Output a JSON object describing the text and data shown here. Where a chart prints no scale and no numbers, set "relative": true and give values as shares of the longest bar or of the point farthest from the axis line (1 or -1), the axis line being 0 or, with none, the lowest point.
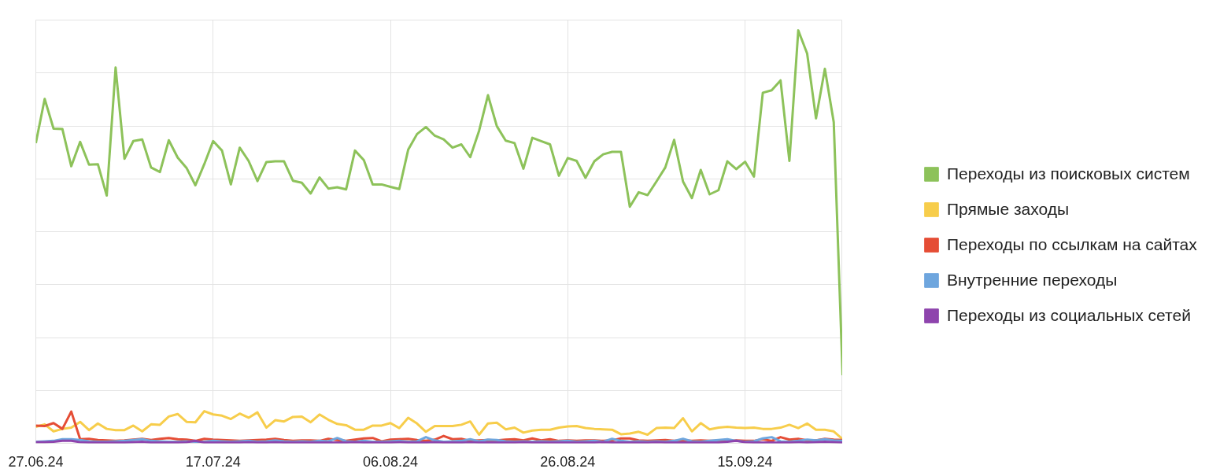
{
  "chart_data": {
    "type": "line",
    "relative": true,
    "grid": true,
    "legend": "right",
    "line_style": "solid",
    "x": [
      "2024-06-27",
      "2024-06-28",
      "2024-06-29",
      "2024-06-30",
      "2024-07-01",
      "2024-07-02",
      "2024-07-03",
      "2024-07-04",
      "2024-07-05",
      "2024-07-06",
      "2024-07-07",
      "2024-07-08",
      "2024-07-09",
      "2024-07-10",
      "2024-07-11",
      "2024-07-12",
      "2024-07-13",
      "2024-07-14",
      "2024-07-15",
      "2024-07-16",
      "2024-07-17",
      "2024-07-18",
      "2024-07-19",
      "2024-07-20",
      "2024-07-21",
      "2024-07-22",
      "2024-07-23",
      "2024-07-24",
      "2024-07-25",
      "2024-07-26",
      "2024-07-27",
      "2024-07-28",
      "2024-07-29",
      "2024-07-30",
      "2024-07-31",
      "2024-08-01",
      "2024-08-02",
      "2024-08-03",
      "2024-08-04",
      "2024-08-05",
      "2024-08-06",
      "2024-08-07",
      "2024-08-08",
      "2024-08-09",
      "2024-08-10",
      "2024-08-11",
      "2024-08-12",
      "2024-08-13",
      "2024-08-14",
      "2024-08-15",
      "2024-08-16",
      "2024-08-17",
      "2024-08-18",
      "2024-08-19",
      "2024-08-20",
      "2024-08-21",
      "2024-08-22",
      "2024-08-23",
      "2024-08-24",
      "2024-08-25",
      "2024-08-26",
      "2024-08-27",
      "2024-08-28",
      "2024-08-29",
      "2024-08-30",
      "2024-08-31",
      "2024-09-01",
      "2024-09-02",
      "2024-09-03",
      "2024-09-04",
      "2024-09-05",
      "2024-09-06",
      "2024-09-07",
      "2024-09-08",
      "2024-09-09",
      "2024-09-10",
      "2024-09-11",
      "2024-09-12",
      "2024-09-13",
      "2024-09-14",
      "2024-09-15",
      "2024-09-16",
      "2024-09-17",
      "2024-09-18",
      "2024-09-19",
      "2024-09-20",
      "2024-09-21",
      "2024-09-22",
      "2024-09-23",
      "2024-09-24",
      "2024-09-25",
      "2024-09-26"
    ],
    "xlim": [
      "2024-06-27",
      "2024-09-26"
    ],
    "xticks": [
      {
        "value": "2024-06-27",
        "label": "27.06.24"
      },
      {
        "value": "2024-07-17",
        "label": "17.07.24"
      },
      {
        "value": "2024-08-06",
        "label": "06.08.24"
      },
      {
        "value": "2024-08-26",
        "label": "26.08.24"
      },
      {
        "value": "2024-09-15",
        "label": "15.09.24"
      }
    ],
    "series": [
      {
        "name": "Переходы из поисковых систем",
        "color": "#8dc25a",
        "values": [
          0.727,
          0.834,
          0.762,
          0.761,
          0.671,
          0.73,
          0.675,
          0.676,
          0.6,
          0.91,
          0.689,
          0.732,
          0.736,
          0.668,
          0.657,
          0.734,
          0.692,
          0.667,
          0.625,
          0.676,
          0.732,
          0.709,
          0.627,
          0.716,
          0.684,
          0.635,
          0.681,
          0.683,
          0.683,
          0.636,
          0.631,
          0.605,
          0.644,
          0.617,
          0.62,
          0.615,
          0.709,
          0.686,
          0.627,
          0.627,
          0.621,
          0.616,
          0.711,
          0.749,
          0.766,
          0.745,
          0.736,
          0.716,
          0.724,
          0.693,
          0.757,
          0.843,
          0.768,
          0.733,
          0.727,
          0.665,
          0.74,
          0.732,
          0.724,
          0.648,
          0.691,
          0.684,
          0.643,
          0.683,
          0.7,
          0.706,
          0.706,
          0.573,
          0.608,
          0.601,
          0.634,
          0.668,
          0.735,
          0.634,
          0.594,
          0.662,
          0.603,
          0.613,
          0.683,
          0.664,
          0.682,
          0.646,
          0.849,
          0.855,
          0.879,
          0.684,
          1.0,
          0.944,
          0.787,
          0.907,
          0.778,
          0.165
        ]
      },
      {
        "name": "Прямые заходы",
        "color": "#f7cd4b",
        "values": [
          0.04,
          0.046,
          0.029,
          0.035,
          0.038,
          0.052,
          0.032,
          0.048,
          0.035,
          0.032,
          0.032,
          0.043,
          0.029,
          0.046,
          0.045,
          0.065,
          0.071,
          0.052,
          0.051,
          0.078,
          0.07,
          0.067,
          0.059,
          0.072,
          0.062,
          0.075,
          0.038,
          0.056,
          0.053,
          0.064,
          0.065,
          0.051,
          0.07,
          0.057,
          0.047,
          0.044,
          0.033,
          0.033,
          0.043,
          0.043,
          0.049,
          0.037,
          0.062,
          0.048,
          0.028,
          0.042,
          0.042,
          0.042,
          0.045,
          0.053,
          0.021,
          0.048,
          0.05,
          0.034,
          0.038,
          0.026,
          0.031,
          0.033,
          0.033,
          0.038,
          0.041,
          0.042,
          0.037,
          0.035,
          0.034,
          0.033,
          0.022,
          0.024,
          0.028,
          0.021,
          0.037,
          0.038,
          0.037,
          0.061,
          0.029,
          0.049,
          0.034,
          0.038,
          0.04,
          0.038,
          0.037,
          0.038,
          0.035,
          0.035,
          0.038,
          0.045,
          0.037,
          0.048,
          0.033,
          0.033,
          0.029,
          0.01
        ]
      },
      {
        "name": "Переходы по ссылкам на сайтах",
        "color": "#e54d35",
        "values": [
          0.043,
          0.042,
          0.049,
          0.035,
          0.077,
          0.01,
          0.011,
          0.008,
          0.007,
          0.006,
          0.007,
          0.009,
          0.011,
          0.008,
          0.011,
          0.013,
          0.01,
          0.009,
          0.006,
          0.011,
          0.009,
          0.008,
          0.007,
          0.006,
          0.007,
          0.008,
          0.009,
          0.011,
          0.008,
          0.006,
          0.007,
          0.007,
          0.006,
          0.011,
          0.008,
          0.006,
          0.009,
          0.012,
          0.013,
          0.005,
          0.009,
          0.01,
          0.011,
          0.008,
          0.006,
          0.009,
          0.018,
          0.01,
          0.011,
          0.006,
          0.007,
          0.008,
          0.007,
          0.009,
          0.01,
          0.007,
          0.012,
          0.007,
          0.01,
          0.006,
          0.007,
          0.006,
          0.007,
          0.007,
          0.006,
          0.007,
          0.012,
          0.012,
          0.007,
          0.006,
          0.007,
          0.008,
          0.006,
          0.007,
          0.006,
          0.007,
          0.006,
          0.006,
          0.005,
          0.007,
          0.006,
          0.006,
          0.01,
          0.006,
          0.015,
          0.009,
          0.011,
          0.007,
          0.007,
          0.011,
          0.009,
          0.008
        ]
      },
      {
        "name": "Внутренние переходы",
        "color": "#6ea6de",
        "values": [
          0.004,
          0.005,
          0.006,
          0.01,
          0.01,
          0.008,
          0.005,
          0.004,
          0.004,
          0.005,
          0.006,
          0.008,
          0.01,
          0.006,
          0.005,
          0.004,
          0.004,
          0.005,
          0.004,
          0.004,
          0.006,
          0.005,
          0.004,
          0.005,
          0.006,
          0.004,
          0.005,
          0.007,
          0.005,
          0.004,
          0.005,
          0.004,
          0.006,
          0.005,
          0.013,
          0.005,
          0.004,
          0.006,
          0.004,
          0.004,
          0.005,
          0.006,
          0.004,
          0.005,
          0.015,
          0.007,
          0.004,
          0.005,
          0.006,
          0.01,
          0.005,
          0.009,
          0.008,
          0.005,
          0.004,
          0.005,
          0.004,
          0.005,
          0.004,
          0.005,
          0.006,
          0.004,
          0.005,
          0.006,
          0.004,
          0.011,
          0.006,
          0.004,
          0.005,
          0.004,
          0.005,
          0.004,
          0.006,
          0.011,
          0.005,
          0.004,
          0.006,
          0.008,
          0.01,
          0.006,
          0.004,
          0.005,
          0.012,
          0.015,
          0.005,
          0.004,
          0.006,
          0.009,
          0.007,
          0.01,
          0.007,
          0.006
        ]
      },
      {
        "name": "Переходы из социальных сетей",
        "color": "#8e44ad",
        "values": [
          0.003,
          0.003,
          0.004,
          0.006,
          0.006,
          0.003,
          0.002,
          0.002,
          0.002,
          0.002,
          0.002,
          0.003,
          0.004,
          0.002,
          0.002,
          0.002,
          0.002,
          0.003,
          0.006,
          0.002,
          0.002,
          0.002,
          0.002,
          0.002,
          0.003,
          0.002,
          0.002,
          0.003,
          0.002,
          0.002,
          0.002,
          0.002,
          0.002,
          0.002,
          0.002,
          0.002,
          0.003,
          0.002,
          0.002,
          0.002,
          0.002,
          0.003,
          0.002,
          0.002,
          0.002,
          0.003,
          0.002,
          0.002,
          0.002,
          0.003,
          0.002,
          0.002,
          0.002,
          0.002,
          0.002,
          0.003,
          0.002,
          0.002,
          0.002,
          0.002,
          0.002,
          0.002,
          0.002,
          0.002,
          0.003,
          0.002,
          0.002,
          0.002,
          0.002,
          0.002,
          0.003,
          0.002,
          0.002,
          0.002,
          0.002,
          0.002,
          0.002,
          0.002,
          0.004,
          0.006,
          0.003,
          0.002,
          0.002,
          0.002,
          0.002,
          0.002,
          0.003,
          0.002,
          0.003,
          0.004,
          0.003,
          0.002
        ]
      }
    ]
  }
}
